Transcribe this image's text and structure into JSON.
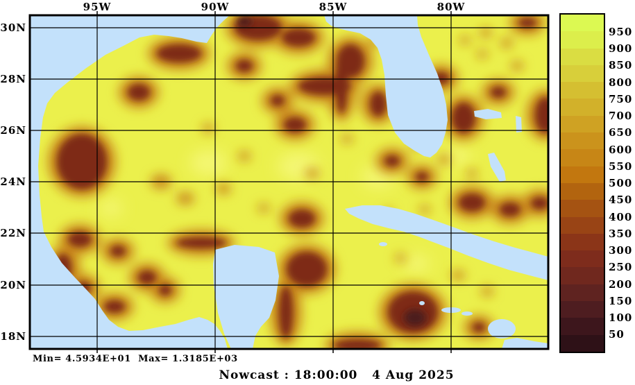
{
  "title": "Nowcast : 18:00:00   4 Aug 2025",
  "stats_line": "Min= 4.5934E+01  Max= 1.3185E+03",
  "map": {
    "lon_labels": [
      "95W",
      "90W",
      "85W",
      "80W"
    ],
    "lat_labels": [
      "30N",
      "28N",
      "26N",
      "24N",
      "22N",
      "20N",
      "18N"
    ]
  },
  "colorbar": {
    "tick_labels": [
      "950",
      "900",
      "850",
      "800",
      "750",
      "700",
      "650",
      "600",
      "550",
      "500",
      "450",
      "400",
      "350",
      "300",
      "250",
      "200",
      "150",
      "100",
      "50"
    ],
    "band_colors": [
      "#dcf952",
      "#dcee4b",
      "#dadd42",
      "#d8cf3a",
      "#d5bf31",
      "#d2b12a",
      "#cfa223",
      "#cb931c",
      "#c78616",
      "#c2770f",
      "#b2640f",
      "#a55312",
      "#994415",
      "#8b3518",
      "#7e2c1c",
      "#70281e",
      "#5f2320",
      "#4e1d20",
      "#3d161c",
      "#2e1117"
    ]
  },
  "colors": {
    "land_mask": "#c3e1fb",
    "field_high": "#ebf04c",
    "field_low": "#7e2c15",
    "frame": "#000000",
    "background": "#ffffff"
  },
  "chart_data": {
    "type": "heatmap",
    "title": "Nowcast : 18:00:00   4 Aug 2025",
    "x_axis": {
      "ticks": [
        "95W",
        "90W",
        "85W",
        "80W"
      ]
    },
    "y_axis": {
      "ticks": [
        "30N",
        "28N",
        "26N",
        "24N",
        "22N",
        "20N",
        "18N"
      ]
    },
    "colorbar_ticks": [
      950,
      900,
      850,
      800,
      750,
      700,
      650,
      600,
      550,
      500,
      450,
      400,
      350,
      300,
      250,
      200,
      150,
      100,
      50
    ],
    "value_min": "4.5934E+01",
    "value_max": "1.3185E+03",
    "legend_position": "right",
    "grid": true
  }
}
